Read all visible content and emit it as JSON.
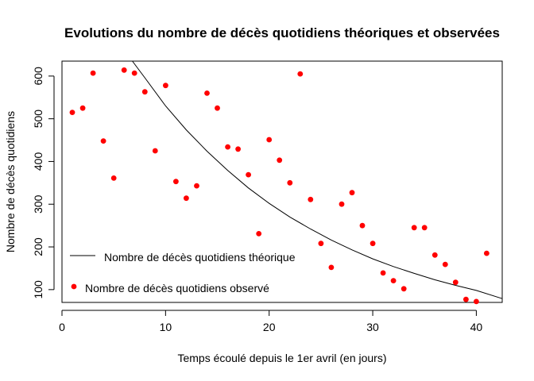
{
  "chart_data": {
    "type": "scatter",
    "title": "Evolutions du nombre de décès quotidiens théoriques et observées",
    "xlabel": "Temps écoulé depuis le 1er avril (en jours)",
    "ylabel": "Nombre de décès quotidiens",
    "xlim": [
      0,
      42.5
    ],
    "ylim": [
      70,
      635
    ],
    "xticks": [
      0,
      10,
      20,
      30,
      40
    ],
    "yticks": [
      100,
      200,
      300,
      400,
      500,
      600
    ],
    "grid": false,
    "legend_position": "bottom-left",
    "series": [
      {
        "name": "Nombre de décès quotidiens observé",
        "kind": "points",
        "color": "#ff0000",
        "x": [
          1,
          2,
          3,
          4,
          5,
          6,
          7,
          8,
          9,
          10,
          11,
          12,
          13,
          14,
          15,
          16,
          17,
          18,
          19,
          20,
          21,
          22,
          23,
          24,
          25,
          26,
          27,
          28,
          29,
          30,
          31,
          32,
          33,
          34,
          35,
          36,
          37,
          38,
          39,
          40,
          41
        ],
        "y": [
          515,
          525,
          607,
          448,
          361,
          614,
          607,
          563,
          425,
          578,
          353,
          314,
          343,
          560,
          525,
          434,
          429,
          369,
          231,
          451,
          403,
          350,
          605,
          311,
          208,
          152,
          300,
          327,
          250,
          208,
          139,
          121,
          102,
          245,
          245,
          181,
          159,
          117,
          77,
          72,
          185
        ]
      },
      {
        "name": "Nombre de décès quotidiens théorique",
        "kind": "line",
        "color": "#000000",
        "x": [
          6.8,
          8,
          10,
          12,
          14,
          16,
          18,
          20,
          22,
          24,
          26,
          28,
          30,
          32,
          34,
          36,
          38,
          40,
          42.5
        ],
        "y": [
          635,
          596,
          530,
          474,
          424,
          379,
          338,
          302,
          270,
          242,
          216,
          193,
          172,
          154,
          138,
          123,
          110,
          98,
          79
        ]
      }
    ]
  }
}
